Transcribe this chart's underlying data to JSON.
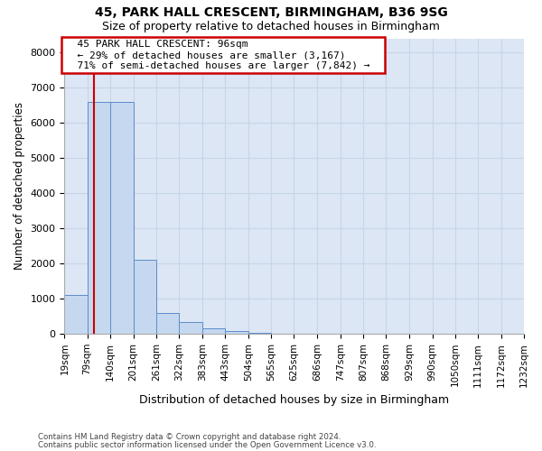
{
  "title1": "45, PARK HALL CRESCENT, BIRMINGHAM, B36 9SG",
  "title2": "Size of property relative to detached houses in Birmingham",
  "xlabel": "Distribution of detached houses by size in Birmingham",
  "ylabel": "Number of detached properties",
  "footnote1": "Contains HM Land Registry data © Crown copyright and database right 2024.",
  "footnote2": "Contains public sector information licensed under the Open Government Licence v3.0.",
  "annotation_title": "45 PARK HALL CRESCENT: 96sqm",
  "annotation_line1": "← 29% of detached houses are smaller (3,167)",
  "annotation_line2": "71% of semi-detached houses are larger (7,842) →",
  "property_size": 96,
  "bar_edges": [
    19,
    79,
    140,
    201,
    261,
    322,
    383,
    443,
    504,
    565,
    625,
    686,
    747,
    807,
    868,
    929,
    990,
    1050,
    1111,
    1172,
    1232
  ],
  "bar_heights": [
    1100,
    6600,
    6600,
    2100,
    600,
    350,
    150,
    70,
    40,
    10,
    5,
    3,
    2,
    1,
    1,
    1,
    0,
    0,
    0,
    0
  ],
  "bar_color": "#c5d8f0",
  "bar_edge_color": "#5b8dc8",
  "grid_color": "#c8d4e8",
  "bg_color": "#dce6f5",
  "red_line_color": "#cc0000",
  "annotation_box_color": "#cc0000",
  "ylim": [
    0,
    8400
  ],
  "yticks": [
    0,
    1000,
    2000,
    3000,
    4000,
    5000,
    6000,
    7000,
    8000
  ]
}
